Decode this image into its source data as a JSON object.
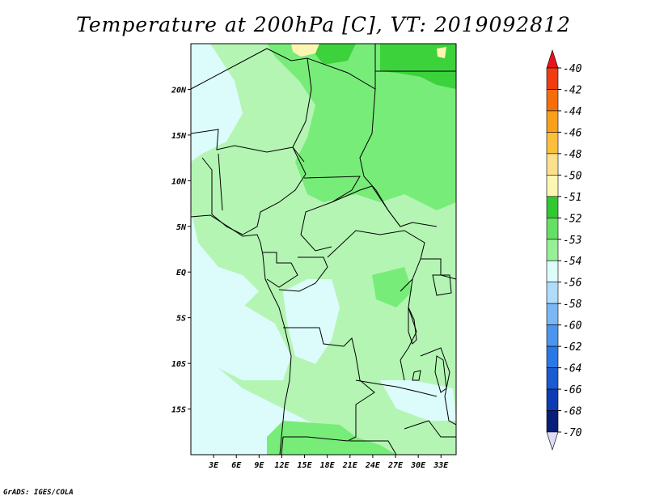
{
  "title": "Temperature at 200hPa [C], VT: 2019092812",
  "footer": "GrADS: IGES/COLA",
  "map": {
    "lat_ticks": [
      "20N",
      "15N",
      "10N",
      "5N",
      "EQ",
      "5S",
      "10S",
      "15S"
    ],
    "lat_values": [
      20,
      15,
      10,
      5,
      0,
      -5,
      -10,
      -15
    ],
    "lon_ticks": [
      "3E",
      "6E",
      "9E",
      "12E",
      "15E",
      "18E",
      "21E",
      "24E",
      "27E",
      "30E",
      "33E"
    ],
    "lon_values": [
      3,
      6,
      9,
      12,
      15,
      18,
      21,
      24,
      27,
      30,
      33
    ],
    "lat_range": [
      -20,
      25
    ],
    "lon_range": [
      0,
      35
    ]
  },
  "colorbar": {
    "labels": [
      "-40",
      "-42",
      "-44",
      "-46",
      "-48",
      "-50",
      "-51",
      "-52",
      "-53",
      "-54",
      "-56",
      "-58",
      "-60",
      "-62",
      "-64",
      "-66",
      "-68",
      "-70"
    ],
    "colors": [
      "#e8141c",
      "#f03c0f",
      "#f56e0a",
      "#f9a01a",
      "#fbbf3a",
      "#fde08a",
      "#fdf6b0",
      "#32c832",
      "#64e064",
      "#96f096",
      "#dcfcfc",
      "#b0dcfc",
      "#7ab8f5",
      "#4a96ee",
      "#2a78e6",
      "#1a5ad2",
      "#0c3cb4",
      "#081e78",
      "#05104a",
      "#dcdcfa"
    ]
  }
}
